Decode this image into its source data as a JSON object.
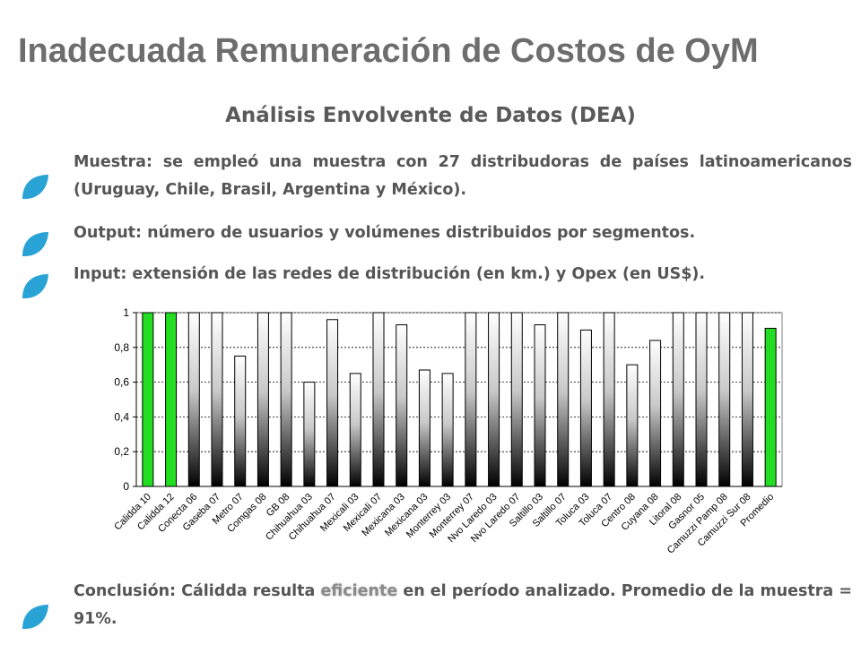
{
  "header": {
    "title": "Inadecuada Remuneración de Costos de OyM",
    "subtitle": "Análisis Envolvente de Datos (DEA)"
  },
  "bullets": [
    {
      "text": "Muestra: se empleó una muestra con 27 distribudoras de países latinoamericanos (Uruguay, Chile, Brasil, Argentina y México)."
    },
    {
      "text": "Output: número de usuarios y volúmenes distribuidos por segmentos."
    },
    {
      "text": "Input: extensión de las redes de distribución (en km.) y Opex (en US$)."
    }
  ],
  "conclusion": {
    "before": "Conclusión: Cálidda resulta ",
    "highlight": "eficiente",
    "after": " en el período analizado. Promedio de la muestra =  91%."
  },
  "colors": {
    "accent_leaf": "#29a3d6",
    "bar_highlight": "#22dd22",
    "text": "#555555",
    "title": "#6d6d6d"
  },
  "icons": {
    "bullet": "leaf-bullet-icon"
  },
  "chart_data": {
    "type": "bar",
    "title": "",
    "xlabel": "",
    "ylabel": "",
    "ylim": [
      0,
      1
    ],
    "yticks": [
      "0",
      "0,2",
      "0,4",
      "0,6",
      "0,8",
      "1"
    ],
    "grid": "horizontal dashed",
    "categories": [
      "Calidda 10",
      "Calidda 12",
      "Conecta 06",
      "Gaseba 07",
      "Metro 07",
      "Comgas 08",
      "GB 08",
      "Chihuahua 03",
      "Chihuahua 07",
      "Mexicali 03",
      "Mexicali 07",
      "Mexicana 03",
      "Mexicana 03",
      "Monterrey 03",
      "Monterrey 07",
      "Nvo Laredo 03",
      "Nvo Laredo 07",
      "Saltillo 03",
      "Saltillo 07",
      "Toluca 03",
      "Toluca 07",
      "Centro 08",
      "Cuyana 08",
      "Litoral 08",
      "Gasnor 05",
      "Camuzzi Pamp 08",
      "Camuzzi Sur 08",
      "Promedio"
    ],
    "values": [
      1,
      1,
      1,
      1,
      0.75,
      1,
      1,
      0.6,
      0.96,
      0.65,
      1,
      0.93,
      0.67,
      0.65,
      1,
      1,
      1,
      0.93,
      1,
      0.9,
      1,
      0.7,
      0.84,
      1,
      1,
      1,
      1,
      0.91
    ],
    "highlight_indices": [
      0,
      1,
      27
    ]
  }
}
